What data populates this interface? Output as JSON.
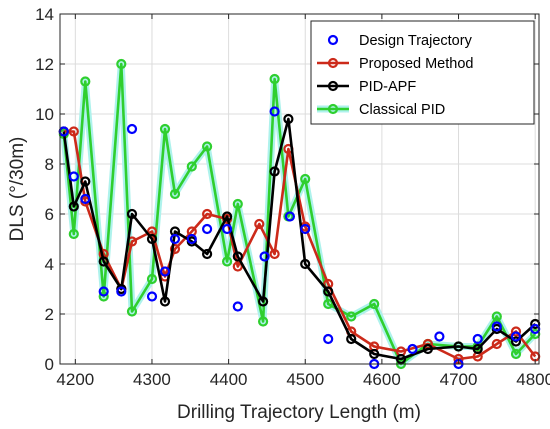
{
  "chart_data": {
    "type": "line",
    "xlabel": "Drilling Trajectory Length (m)",
    "ylabel": "DLS (°/30m)",
    "xlim": [
      4180,
      4805
    ],
    "ylim": [
      0,
      14
    ],
    "xticks": [
      4200,
      4300,
      4400,
      4500,
      4600,
      4700,
      4800
    ],
    "yticks": [
      0,
      2,
      4,
      6,
      8,
      10,
      12,
      14
    ],
    "grid": true,
    "legend_position": "top-right",
    "series": [
      {
        "name": "Design Trajectory",
        "style": "markers",
        "color": "#0000ff",
        "points": [
          [
            4185,
            9.3
          ],
          [
            4198,
            7.5
          ],
          [
            4213,
            6.6
          ],
          [
            4237,
            2.9
          ],
          [
            4260,
            2.9
          ],
          [
            4274,
            9.4
          ],
          [
            4300,
            2.7
          ],
          [
            4317,
            3.7
          ],
          [
            4330,
            5.0
          ],
          [
            4352,
            5.0
          ],
          [
            4372,
            5.4
          ],
          [
            4398,
            5.4
          ],
          [
            4412,
            2.3
          ],
          [
            4447,
            4.3
          ],
          [
            4460,
            10.1
          ],
          [
            4480,
            5.9
          ],
          [
            4500,
            5.4
          ],
          [
            4530,
            1.0
          ],
          [
            4590,
            0.0
          ],
          [
            4640,
            0.6
          ],
          [
            4675,
            1.1
          ],
          [
            4700,
            0.0
          ],
          [
            4725,
            1.0
          ],
          [
            4750,
            1.5
          ],
          [
            4775,
            1.1
          ],
          [
            4800,
            1.4
          ]
        ]
      },
      {
        "name": "Proposed Method",
        "style": "line-markers",
        "color": "#cc2a1a",
        "points": [
          [
            4185,
            9.3
          ],
          [
            4198,
            9.3
          ],
          [
            4213,
            6.5
          ],
          [
            4237,
            4.4
          ],
          [
            4260,
            3.0
          ],
          [
            4274,
            4.9
          ],
          [
            4300,
            5.3
          ],
          [
            4317,
            3.5
          ],
          [
            4330,
            4.6
          ],
          [
            4352,
            5.3
          ],
          [
            4372,
            6.0
          ],
          [
            4398,
            5.8
          ],
          [
            4412,
            3.9
          ],
          [
            4440,
            5.6
          ],
          [
            4460,
            4.4
          ],
          [
            4478,
            8.6
          ],
          [
            4500,
            5.5
          ],
          [
            4530,
            3.2
          ],
          [
            4560,
            1.3
          ],
          [
            4590,
            0.7
          ],
          [
            4625,
            0.5
          ],
          [
            4660,
            0.8
          ],
          [
            4700,
            0.2
          ],
          [
            4725,
            0.3
          ],
          [
            4750,
            0.8
          ],
          [
            4775,
            1.3
          ],
          [
            4800,
            0.3
          ]
        ]
      },
      {
        "name": "PID-APF",
        "style": "line-markers",
        "color": "#000000",
        "points": [
          [
            4185,
            9.3
          ],
          [
            4198,
            6.3
          ],
          [
            4213,
            7.3
          ],
          [
            4237,
            4.1
          ],
          [
            4260,
            3.0
          ],
          [
            4274,
            6.0
          ],
          [
            4300,
            5.0
          ],
          [
            4317,
            2.5
          ],
          [
            4330,
            5.3
          ],
          [
            4352,
            4.9
          ],
          [
            4372,
            4.4
          ],
          [
            4398,
            5.9
          ],
          [
            4412,
            4.3
          ],
          [
            4445,
            2.5
          ],
          [
            4460,
            7.7
          ],
          [
            4478,
            9.8
          ],
          [
            4500,
            4.0
          ],
          [
            4530,
            2.9
          ],
          [
            4560,
            1.0
          ],
          [
            4590,
            0.4
          ],
          [
            4625,
            0.2
          ],
          [
            4660,
            0.6
          ],
          [
            4700,
            0.7
          ],
          [
            4725,
            0.6
          ],
          [
            4750,
            1.4
          ],
          [
            4775,
            0.9
          ],
          [
            4800,
            1.6
          ]
        ]
      },
      {
        "name": "Classical PID",
        "style": "line-markers",
        "color": "#2fcf2f",
        "points": [
          [
            4185,
            9.2
          ],
          [
            4198,
            5.2
          ],
          [
            4213,
            11.3
          ],
          [
            4237,
            2.7
          ],
          [
            4260,
            12.0
          ],
          [
            4274,
            2.1
          ],
          [
            4300,
            3.4
          ],
          [
            4317,
            9.4
          ],
          [
            4330,
            6.8
          ],
          [
            4352,
            7.9
          ],
          [
            4372,
            8.7
          ],
          [
            4398,
            4.1
          ],
          [
            4412,
            6.4
          ],
          [
            4445,
            1.7
          ],
          [
            4460,
            11.4
          ],
          [
            4478,
            5.9
          ],
          [
            4500,
            7.4
          ],
          [
            4530,
            2.4
          ],
          [
            4560,
            1.9
          ],
          [
            4590,
            2.4
          ],
          [
            4625,
            0.0
          ],
          [
            4660,
            0.8
          ],
          [
            4700,
            0.7
          ],
          [
            4725,
            0.7
          ],
          [
            4750,
            1.9
          ],
          [
            4775,
            0.4
          ],
          [
            4800,
            1.2
          ]
        ]
      }
    ]
  }
}
